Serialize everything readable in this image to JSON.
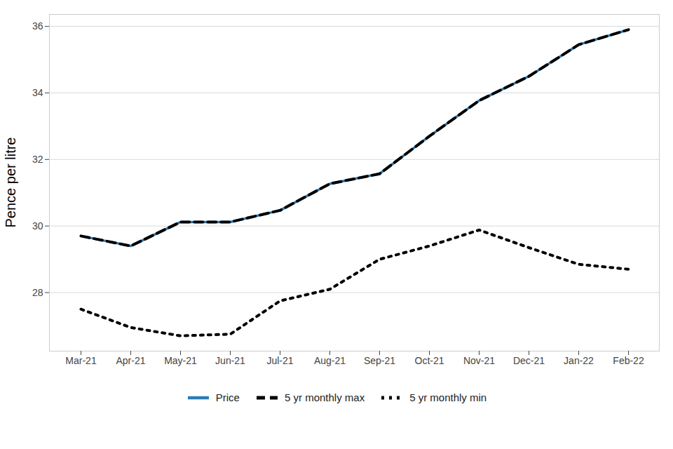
{
  "chart_data": {
    "type": "line",
    "y_label": "Pence per litre",
    "x": [
      "Mar-21",
      "Apr-21",
      "May-21",
      "Jun-21",
      "Jul-21",
      "Aug-21",
      "Sep-21",
      "Oct-21",
      "Nov-21",
      "Dec-21",
      "Jan-22",
      "Feb-22"
    ],
    "series": [
      {
        "name": "Price",
        "color": "#2c7bb6",
        "line_style": "solid",
        "values": [
          29.7,
          29.4,
          30.12,
          30.12,
          30.47,
          31.27,
          31.57,
          32.7,
          33.77,
          34.5,
          35.45,
          35.9
        ]
      },
      {
        "name": "5 yr monthly max",
        "color": "#000000",
        "line_style": "dashed",
        "values": [
          29.7,
          29.4,
          30.12,
          30.12,
          30.47,
          31.27,
          31.57,
          32.7,
          33.77,
          34.5,
          35.45,
          35.9
        ]
      },
      {
        "name": "5 yr monthly min",
        "color": "#000000",
        "line_style": "dotted",
        "values": [
          27.5,
          26.95,
          26.7,
          26.75,
          27.75,
          28.1,
          29.0,
          29.4,
          29.88,
          29.35,
          28.85,
          28.7
        ]
      }
    ],
    "ylim": [
      26.24,
      36.36
    ],
    "yticks": [
      28,
      30,
      32,
      34,
      36
    ],
    "grid": true,
    "legend": "bottom"
  }
}
